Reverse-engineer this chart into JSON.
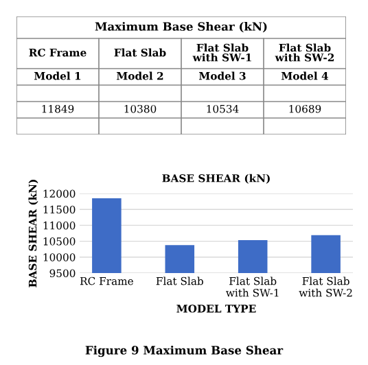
{
  "chart_data": [
    {
      "type": "other",
      "title": "Maximum Base Shear (kN)",
      "categories": [
        "RC Frame",
        "Flat Slab",
        "Flat Slab\nwith SW-1",
        "Flat Slab\nwith SW-2"
      ],
      "annotations": [
        "Model 1",
        "Model 2",
        "Model 3",
        "Model 4"
      ],
      "values": [
        11849,
        10380,
        10534,
        10689
      ],
      "data_labels": true
    },
    {
      "type": "bar",
      "title": "BASE SHEAR (kN)",
      "xlabel": "MODEL TYPE",
      "ylabel": "BASE SHEAR (kN)",
      "categories": [
        "RC Frame",
        "Flat Slab",
        "Flat Slab\nwith SW-1",
        "Flat Slab\nwith SW-2"
      ],
      "values": [
        11849,
        10380,
        10534,
        10689
      ],
      "color": "#3e6cc6",
      "ylim": [
        9500,
        12000
      ],
      "yticks": [
        9500,
        10000,
        10500,
        11000,
        11500,
        12000
      ],
      "grid": "y",
      "annotations": [
        "Figure 9 Maximum Base Shear"
      ]
    }
  ]
}
